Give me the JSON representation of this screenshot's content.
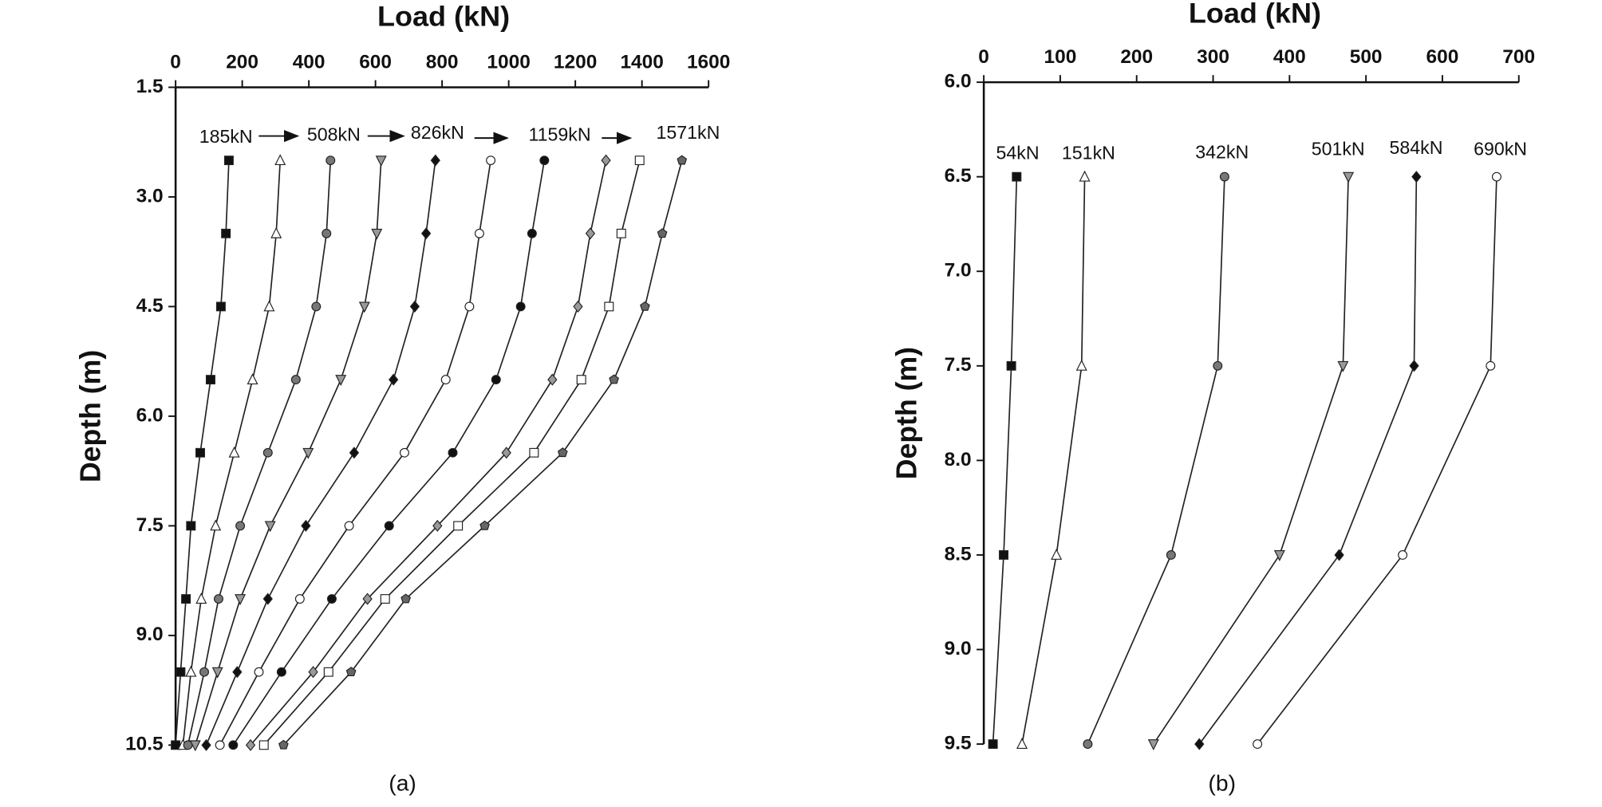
{
  "chart_data": [
    {
      "type": "line",
      "title": "Load (kN)",
      "y_label": "Depth (m)",
      "caption": "(a)",
      "y": [
        2.5,
        3.5,
        4.5,
        5.5,
        6.5,
        7.5,
        8.5,
        9.5,
        10.5
      ],
      "xlim": [
        0,
        1600
      ],
      "xticks": [
        0,
        200,
        400,
        600,
        800,
        1000,
        1200,
        1400,
        1600
      ],
      "ylim": [
        1.5,
        10.5
      ],
      "yticks": [
        1.5,
        {
          "value": 3,
          "label": "3.0"
        },
        4.5,
        {
          "value": 6,
          "label": "6.0"
        },
        7.5,
        {
          "value": 9,
          "label": "9.0"
        },
        10.5
      ],
      "y_reversed": true,
      "annotations": [
        "185kN",
        "508kN",
        "826kN",
        "1159kN",
        "1571kN"
      ],
      "series": [
        {
          "marker": "square",
          "color": "#111111",
          "values": [
            160,
            151,
            136,
            105,
            74,
            46,
            31,
            15,
            0
          ]
        },
        {
          "marker": "triangle",
          "color": "#ffffff",
          "values": [
            314,
            302,
            281,
            231,
            176,
            120,
            77,
            46,
            22
          ]
        },
        {
          "marker": "circle",
          "color": "#777777",
          "values": [
            465,
            453,
            422,
            361,
            277,
            194,
            129,
            86,
            37
          ]
        },
        {
          "marker": "triangle-down",
          "color": "#999999",
          "values": [
            617,
            604,
            567,
            496,
            398,
            284,
            194,
            126,
            59
          ]
        },
        {
          "marker": "diamond",
          "color": "#111111",
          "values": [
            780,
            752,
            718,
            654,
            536,
            391,
            277,
            185,
            92
          ]
        },
        {
          "marker": "circle",
          "color": "#ffffff",
          "values": [
            946,
            912,
            882,
            811,
            687,
            521,
            373,
            250,
            133
          ]
        },
        {
          "marker": "circle",
          "color": "#111111",
          "values": [
            1107,
            1070,
            1036,
            962,
            832,
            641,
            469,
            318,
            173
          ]
        },
        {
          "marker": "diamond",
          "color": "#999999",
          "values": [
            1292,
            1245,
            1208,
            1131,
            993,
            786,
            576,
            413,
            225
          ]
        },
        {
          "marker": "square",
          "color": "#ffffff",
          "values": [
            1393,
            1338,
            1301,
            1218,
            1076,
            848,
            629,
            459,
            265
          ]
        },
        {
          "marker": "pentagon",
          "color": "#666666",
          "values": [
            1520,
            1461,
            1409,
            1316,
            1162,
            928,
            691,
            527,
            324
          ]
        }
      ]
    },
    {
      "type": "line",
      "title": "Load (kN)",
      "y_label": "Depth (m)",
      "caption": "(b)",
      "y": [
        6.5,
        7.5,
        8.5,
        9.5
      ],
      "xlim": [
        0,
        700
      ],
      "xticks": [
        0,
        100,
        200,
        300,
        400,
        500,
        600,
        700
      ],
      "ylim": [
        6,
        9.5
      ],
      "yticks": [
        {
          "value": 6,
          "label": "6.0"
        },
        6.5,
        {
          "value": 7,
          "label": "7.0"
        },
        7.5,
        {
          "value": 8,
          "label": "8.0"
        },
        8.5,
        {
          "value": 9,
          "label": "9.0"
        },
        9.5
      ],
      "y_reversed": true,
      "annotations": [
        "54kN",
        "151kN",
        "342kN",
        "501kN",
        "584kN",
        "690kN"
      ],
      "series": [
        {
          "marker": "square",
          "color": "#111111",
          "values": [
            43,
            36,
            26,
            12
          ]
        },
        {
          "marker": "triangle",
          "color": "#ffffff",
          "values": [
            132,
            128,
            95,
            50
          ]
        },
        {
          "marker": "circle",
          "color": "#777777",
          "values": [
            315,
            306,
            245,
            136
          ]
        },
        {
          "marker": "triangle-down",
          "color": "#999999",
          "values": [
            477,
            470,
            387,
            222
          ]
        },
        {
          "marker": "diamond",
          "color": "#111111",
          "values": [
            566,
            563,
            465,
            282
          ]
        },
        {
          "marker": "circle",
          "color": "#ffffff",
          "values": [
            671,
            663,
            548,
            358
          ]
        }
      ]
    }
  ]
}
